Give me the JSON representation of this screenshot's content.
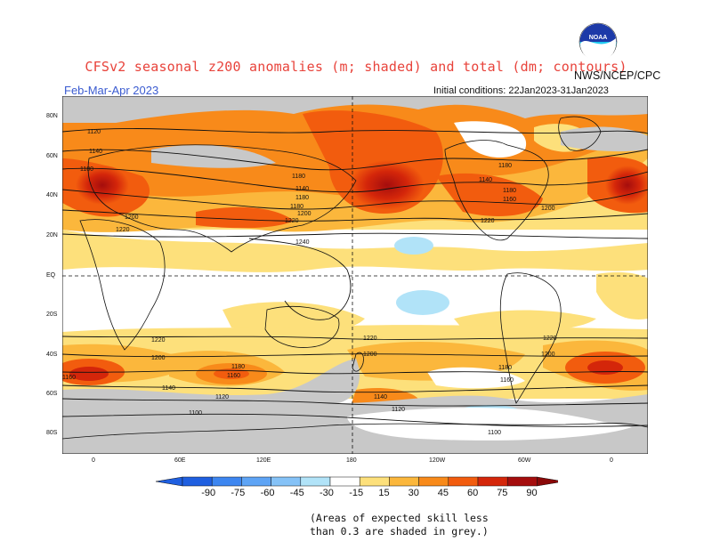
{
  "title": "CFSv2 seasonal z200 anomalies (m; shaded) and total (dm; contours)",
  "agency": "NWS/NCEP/CPC",
  "period": "Feb-Mar-Apr 2023",
  "initial_conditions": "Initial conditions: 22Jan2023-31Jan2023",
  "lat_labels": [
    "80N",
    "60N",
    "40N",
    "20N",
    "EQ",
    "20S",
    "40S",
    "60S",
    "80S"
  ],
  "lon_labels": [
    "0",
    "60E",
    "120E",
    "180",
    "120W",
    "60W",
    "0"
  ],
  "colorbar": {
    "ticks": [
      "-90",
      "-75",
      "-60",
      "-45",
      "-30",
      "-15",
      "15",
      "30",
      "45",
      "60",
      "75",
      "90"
    ],
    "colors": [
      "#1f5fe0",
      "#3d86f0",
      "#5ea4f5",
      "#85c2f7",
      "#b1e3f8",
      "#ffffff",
      "#fde07b",
      "#fbb73c",
      "#f88a1a",
      "#f25c0e",
      "#d4260a",
      "#a50d0d"
    ]
  },
  "contour_labels": [
    "1120",
    "1140",
    "1160",
    "1180",
    "1200",
    "1220",
    "1240",
    "1220",
    "1200",
    "1180",
    "1160",
    "1140",
    "1120",
    "1100"
  ],
  "note_line1": "(Areas of expected skill less",
  "note_line2": "than 0.3 are shaded in grey.)",
  "logo_text": "NOAA"
}
